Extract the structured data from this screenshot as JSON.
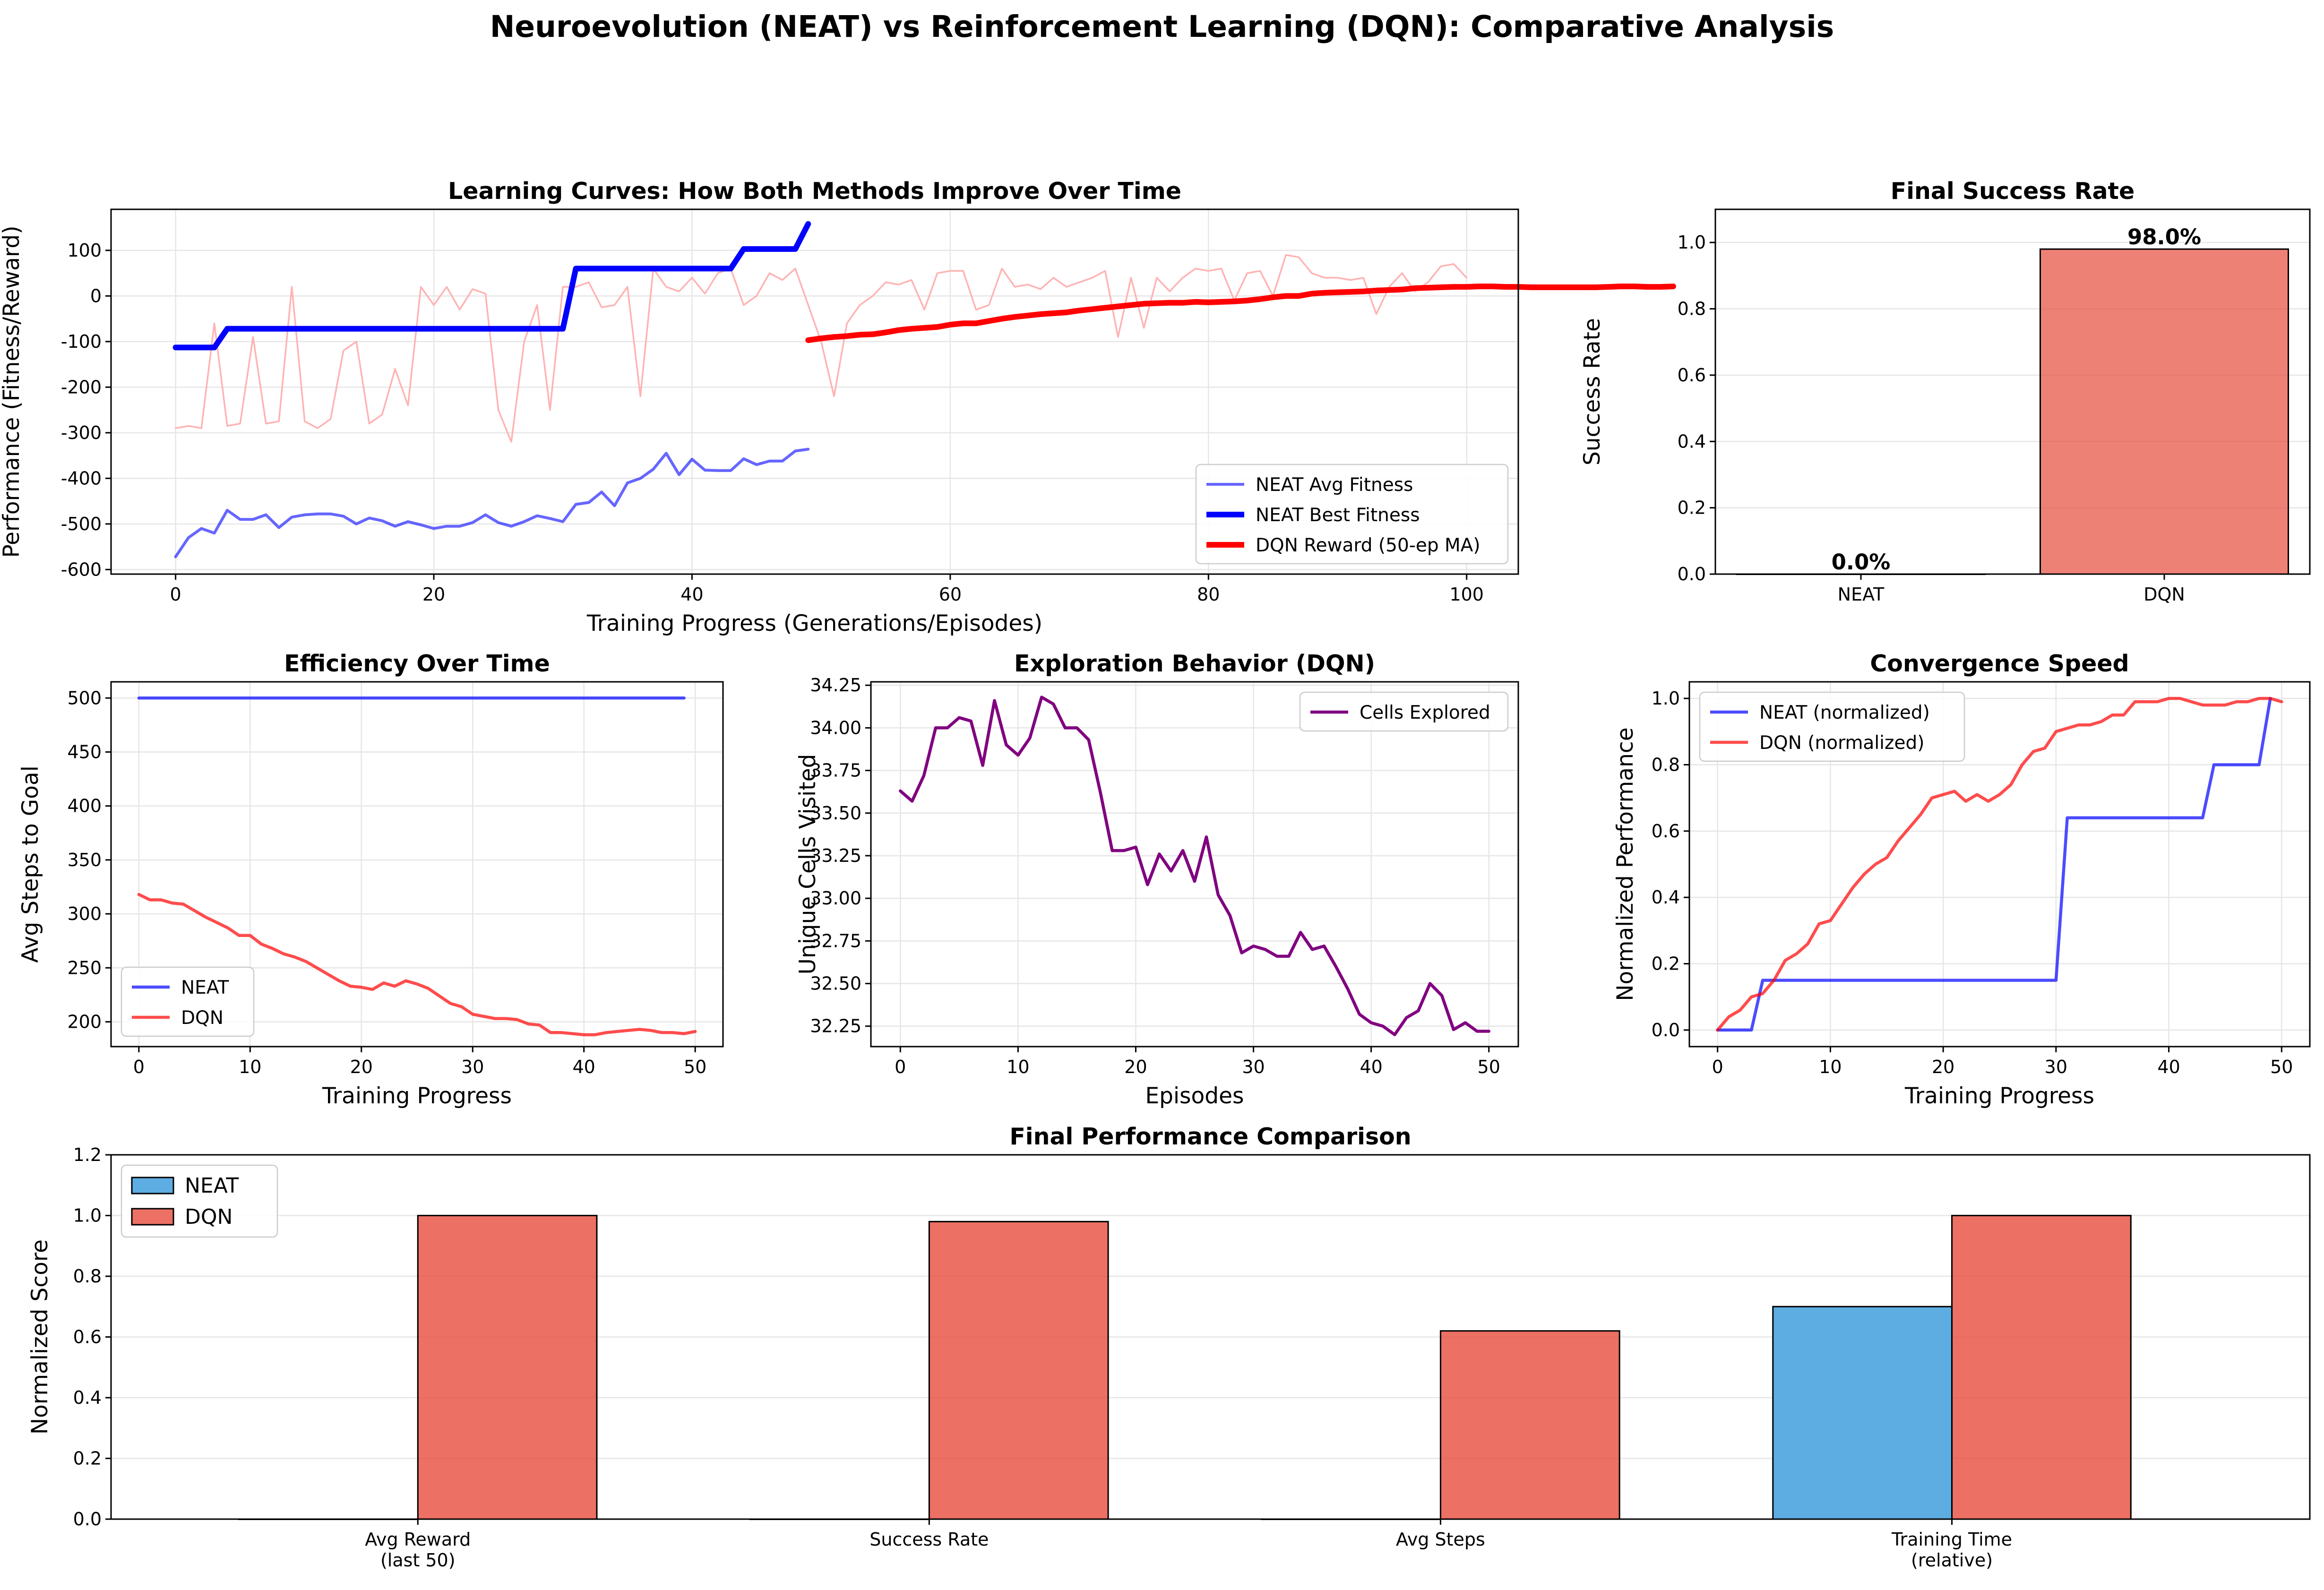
{
  "figure": {
    "suptitle": "Neuroevolution (NEAT) vs Reinforcement Learning (DQN): Comparative Analysis"
  },
  "colors": {
    "neat_line": "#0000ff",
    "dqn_line": "#ff0000",
    "neat_bar": "#5dade2",
    "dqn_bar": "#e74c3c",
    "purple": "#800080",
    "raw_dqn": "#ffb3b3"
  },
  "chart_data": [
    {
      "id": "learning",
      "type": "line",
      "title": "Learning Curves: How Both Methods Improve Over Time",
      "xlabel": "Training Progress (Generations/Episodes)",
      "ylabel": "Performance (Fitness/Reward)",
      "xlim": [
        -5,
        104
      ],
      "ylim": [
        -610,
        190
      ],
      "xticks": [
        0,
        20,
        40,
        60,
        80,
        100
      ],
      "yticks": [
        -600,
        -500,
        -400,
        -300,
        -200,
        -100,
        0,
        100
      ],
      "grid": true,
      "legend": "lower-right",
      "series": [
        {
          "name": "",
          "role": "raw",
          "x_start": 0,
          "values": [
            -290,
            -285,
            -290,
            -60,
            -285,
            -280,
            -90,
            -280,
            -275,
            20,
            -275,
            -290,
            -270,
            -120,
            -100,
            -280,
            -260,
            -160,
            -240,
            20,
            -20,
            20,
            -30,
            15,
            5,
            -250,
            -320,
            -100,
            -20,
            -250,
            20,
            20,
            30,
            -25,
            -20,
            20,
            -220,
            60,
            20,
            10,
            40,
            5,
            50,
            60,
            -20,
            0,
            50,
            35,
            60,
            -20,
            -100,
            -220,
            -60,
            -20,
            0,
            30,
            25,
            35,
            -30,
            50,
            55,
            55,
            -30,
            -20,
            60,
            20,
            25,
            15,
            40,
            20,
            30,
            40,
            55,
            -90,
            40,
            -70,
            40,
            10,
            40,
            60,
            55,
            60,
            -10,
            50,
            55,
            0,
            90,
            85,
            50,
            40,
            40,
            35,
            40,
            -40,
            20,
            50,
            10,
            30,
            65,
            70,
            40
          ]
        },
        {
          "name": "NEAT Avg Fitness",
          "role": "avg",
          "x_start": 0,
          "values": [
            -572,
            -530,
            -510,
            -520,
            -470,
            -490,
            -490,
            -480,
            -508,
            -485,
            -480,
            -478,
            -478,
            -483,
            -500,
            -487,
            -493,
            -505,
            -495,
            -502,
            -510,
            -505,
            -505,
            -497,
            -480,
            -497,
            -505,
            -495,
            -482,
            -488,
            -495,
            -457,
            -453,
            -430,
            -460,
            -410,
            -400,
            -380,
            -345,
            -392,
            -358,
            -382,
            -383,
            -383,
            -357,
            -370,
            -362,
            -362,
            -340,
            -336
          ]
        },
        {
          "name": "NEAT Best Fitness",
          "role": "best",
          "x_start": 0,
          "values": [
            -113,
            -113,
            -113,
            -113,
            -72,
            -72,
            -72,
            -72,
            -72,
            -72,
            -72,
            -72,
            -72,
            -72,
            -72,
            -72,
            -72,
            -72,
            -72,
            -72,
            -72,
            -72,
            -72,
            -72,
            -72,
            -72,
            -72,
            -72,
            -72,
            -72,
            -72,
            60,
            60,
            60,
            60,
            60,
            60,
            60,
            60,
            60,
            60,
            60,
            60,
            60,
            103,
            103,
            103,
            103,
            103,
            158
          ]
        },
        {
          "name": "DQN Reward (50-ep MA)",
          "role": "ma",
          "x_start": 49,
          "values": [
            -97,
            -93,
            -90,
            -88,
            -85,
            -84,
            -80,
            -75,
            -72,
            -70,
            -68,
            -63,
            -60,
            -60,
            -55,
            -50,
            -46,
            -43,
            -40,
            -38,
            -36,
            -32,
            -29,
            -26,
            -23,
            -20,
            -17,
            -16,
            -15,
            -15,
            -13,
            -14,
            -13,
            -12,
            -10,
            -7,
            -3,
            0,
            0,
            5,
            7,
            8,
            9,
            10,
            12,
            13,
            14,
            17,
            18,
            19,
            20,
            20,
            21,
            21,
            20,
            20,
            19,
            19,
            19,
            19,
            19,
            19,
            20,
            21,
            21,
            20,
            20,
            21
          ]
        }
      ]
    },
    {
      "id": "success",
      "type": "bar",
      "title": "Final Success Rate",
      "xlabel": "",
      "ylabel": "Success Rate",
      "categories": [
        "NEAT",
        "DQN"
      ],
      "values": [
        0.0,
        0.98
      ],
      "data_labels": [
        "0.0%",
        "98.0%"
      ],
      "ylim": [
        0,
        1.1
      ],
      "yticks": [
        "0.0",
        "0.2",
        "0.4",
        "0.6",
        "0.8",
        "1.0"
      ],
      "grid": true
    },
    {
      "id": "efficiency",
      "type": "line",
      "title": "Efficiency Over Time",
      "xlabel": "Training Progress",
      "ylabel": "Avg Steps to Goal",
      "xlim": [
        -2.5,
        52.5
      ],
      "ylim": [
        177,
        515
      ],
      "xticks": [
        0,
        10,
        20,
        30,
        40,
        50
      ],
      "yticks": [
        200,
        250,
        300,
        350,
        400,
        450,
        500
      ],
      "grid": true,
      "legend": "lower-left",
      "series": [
        {
          "name": "NEAT",
          "x_start": 0,
          "values": [
            500,
            500,
            500,
            500,
            500,
            500,
            500,
            500,
            500,
            500,
            500,
            500,
            500,
            500,
            500,
            500,
            500,
            500,
            500,
            500,
            500,
            500,
            500,
            500,
            500,
            500,
            500,
            500,
            500,
            500,
            500,
            500,
            500,
            500,
            500,
            500,
            500,
            500,
            500,
            500,
            500,
            500,
            500,
            500,
            500,
            500,
            500,
            500,
            500,
            500
          ]
        },
        {
          "name": "DQN",
          "x_start": 0,
          "values": [
            318,
            313,
            313,
            310,
            309,
            303,
            297,
            292,
            287,
            280,
            280,
            272,
            268,
            263,
            260,
            256,
            250,
            244,
            238,
            233,
            232,
            230,
            236,
            233,
            238,
            235,
            231,
            224,
            217,
            214,
            207,
            205,
            203,
            203,
            202,
            198,
            197,
            190,
            190,
            189,
            188,
            188,
            190,
            191,
            192,
            193,
            192,
            190,
            190,
            189,
            191
          ]
        }
      ]
    },
    {
      "id": "exploration",
      "type": "line",
      "title": "Exploration Behavior (DQN)",
      "xlabel": "Episodes",
      "ylabel": "Unique Cells Visited",
      "xlim": [
        -2.5,
        52.5
      ],
      "ylim": [
        32.13,
        34.27
      ],
      "xticks": [
        0,
        10,
        20,
        30,
        40,
        50
      ],
      "yticks": [
        "32.25",
        "32.50",
        "32.75",
        "33.00",
        "33.25",
        "33.50",
        "33.75",
        "34.00",
        "34.25"
      ],
      "grid": true,
      "legend": "upper-right",
      "series": [
        {
          "name": "Cells Explored",
          "x_start": 0,
          "values": [
            33.63,
            33.57,
            33.72,
            34.0,
            34.0,
            34.06,
            34.04,
            33.78,
            34.16,
            33.9,
            33.84,
            33.94,
            34.18,
            34.14,
            34.0,
            34.0,
            33.93,
            33.62,
            33.28,
            33.28,
            33.3,
            33.08,
            33.26,
            33.16,
            33.28,
            33.1,
            33.36,
            33.02,
            32.9,
            32.68,
            32.72,
            32.7,
            32.66,
            32.66,
            32.8,
            32.7,
            32.72,
            32.6,
            32.47,
            32.32,
            32.27,
            32.25,
            32.2,
            32.3,
            32.34,
            32.5,
            32.43,
            32.23,
            32.27,
            32.22,
            32.22
          ]
        }
      ]
    },
    {
      "id": "convergence",
      "type": "line",
      "title": "Convergence Speed",
      "xlabel": "Training Progress",
      "ylabel": "Normalized Performance",
      "xlim": [
        -2.5,
        52.5
      ],
      "ylim": [
        -0.05,
        1.05
      ],
      "xticks": [
        0,
        10,
        20,
        30,
        40,
        50
      ],
      "yticks": [
        "0.0",
        "0.2",
        "0.4",
        "0.6",
        "0.8",
        "1.0"
      ],
      "grid": true,
      "legend": "upper-left",
      "series": [
        {
          "name": "NEAT (normalized)",
          "x_start": 0,
          "values": [
            0,
            0,
            0,
            0,
            0.15,
            0.15,
            0.15,
            0.15,
            0.15,
            0.15,
            0.15,
            0.15,
            0.15,
            0.15,
            0.15,
            0.15,
            0.15,
            0.15,
            0.15,
            0.15,
            0.15,
            0.15,
            0.15,
            0.15,
            0.15,
            0.15,
            0.15,
            0.15,
            0.15,
            0.15,
            0.15,
            0.64,
            0.64,
            0.64,
            0.64,
            0.64,
            0.64,
            0.64,
            0.64,
            0.64,
            0.64,
            0.64,
            0.64,
            0.64,
            0.8,
            0.8,
            0.8,
            0.8,
            0.8,
            1.0
          ]
        },
        {
          "name": "DQN (normalized)",
          "x_start": 0,
          "values": [
            0,
            0.04,
            0.06,
            0.1,
            0.11,
            0.15,
            0.21,
            0.23,
            0.26,
            0.32,
            0.33,
            0.38,
            0.43,
            0.47,
            0.5,
            0.52,
            0.57,
            0.61,
            0.65,
            0.7,
            0.71,
            0.72,
            0.69,
            0.71,
            0.69,
            0.71,
            0.74,
            0.8,
            0.84,
            0.85,
            0.9,
            0.91,
            0.92,
            0.92,
            0.93,
            0.95,
            0.95,
            0.99,
            0.99,
            0.99,
            1.0,
            1.0,
            0.99,
            0.98,
            0.98,
            0.98,
            0.99,
            0.99,
            1.0,
            1.0,
            0.99
          ]
        }
      ]
    },
    {
      "id": "final",
      "type": "bar",
      "title": "Final Performance Comparison",
      "xlabel": "",
      "ylabel": "Normalized Score",
      "categories": [
        [
          "Avg Reward",
          "(last 50)"
        ],
        [
          "Success Rate"
        ],
        [
          "Avg Steps"
        ],
        [
          "Training Time",
          "(relative)"
        ]
      ],
      "ylim": [
        0,
        1.2
      ],
      "yticks": [
        "0.0",
        "0.2",
        "0.4",
        "0.6",
        "0.8",
        "1.0",
        "1.2"
      ],
      "grid": true,
      "legend": "upper-left",
      "series": [
        {
          "name": "NEAT",
          "values": [
            0.0,
            0.0,
            0.0,
            0.7
          ]
        },
        {
          "name": "DQN",
          "values": [
            1.0,
            0.98,
            0.62,
            1.0
          ]
        }
      ]
    }
  ]
}
